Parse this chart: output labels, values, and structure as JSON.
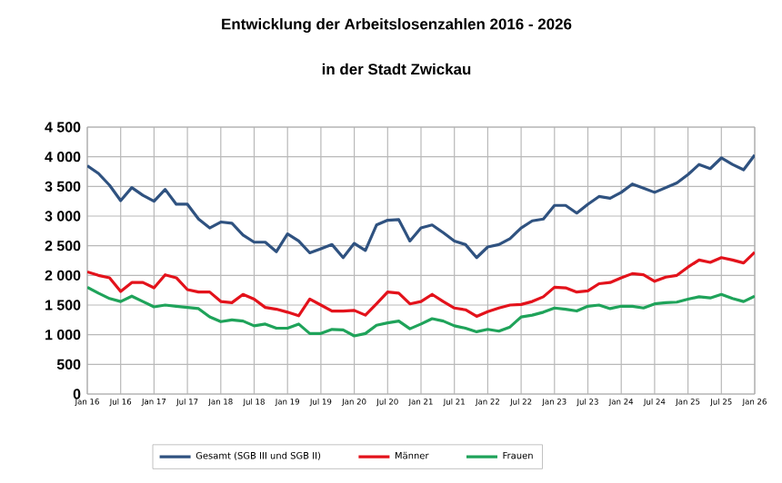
{
  "chart_data": {
    "type": "line",
    "title": "Entwicklung der Arbeitslosenzahlen 2016 - 2026",
    "subtitle": "in der Stadt Zwickau",
    "x": [
      "2016-01",
      "2016-03",
      "2016-05",
      "2016-07",
      "2016-09",
      "2016-11",
      "2017-01",
      "2017-03",
      "2017-05",
      "2017-07",
      "2017-09",
      "2017-11",
      "2018-01",
      "2018-03",
      "2018-05",
      "2018-07",
      "2018-09",
      "2018-11",
      "2019-01",
      "2019-03",
      "2019-05",
      "2019-07",
      "2019-09",
      "2019-11",
      "2020-01",
      "2020-03",
      "2020-05",
      "2020-07",
      "2020-09",
      "2020-11",
      "2021-01",
      "2021-03",
      "2021-05",
      "2021-07",
      "2021-09",
      "2021-11",
      "2022-01",
      "2022-03",
      "2022-05",
      "2022-07",
      "2022-09",
      "2022-11",
      "2023-01",
      "2023-03",
      "2023-05",
      "2023-07",
      "2023-09",
      "2023-11",
      "2024-01",
      "2024-03",
      "2024-05",
      "2024-07",
      "2024-09",
      "2024-11",
      "2025-01",
      "2025-03",
      "2025-05",
      "2025-07",
      "2025-09",
      "2025-11",
      "2026-01"
    ],
    "series": [
      {
        "name": "Gesamt (SGB III und SGB II)",
        "color": "#2f5280",
        "values": [
          3850,
          3720,
          3520,
          3260,
          3480,
          3350,
          3250,
          3450,
          3200,
          3200,
          2950,
          2800,
          2900,
          2880,
          2680,
          2560,
          2560,
          2400,
          2700,
          2580,
          2380,
          2450,
          2520,
          2300,
          2540,
          2420,
          2850,
          2930,
          2940,
          2580,
          2800,
          2850,
          2720,
          2580,
          2520,
          2300,
          2480,
          2520,
          2620,
          2800,
          2920,
          2950,
          3180,
          3180,
          3050,
          3200,
          3330,
          3300,
          3400,
          3540,
          3470,
          3400,
          3480,
          3560,
          3700,
          3870,
          3800,
          3980,
          3870,
          3780,
          4030
        ]
      },
      {
        "name": "Männer",
        "color": "#e3121b",
        "values": [
          2060,
          2000,
          1960,
          1730,
          1880,
          1880,
          1790,
          2010,
          1960,
          1760,
          1720,
          1720,
          1560,
          1540,
          1680,
          1600,
          1460,
          1430,
          1380,
          1320,
          1600,
          1500,
          1400,
          1400,
          1410,
          1330,
          1520,
          1720,
          1700,
          1520,
          1560,
          1680,
          1560,
          1450,
          1420,
          1310,
          1390,
          1450,
          1500,
          1510,
          1560,
          1640,
          1800,
          1790,
          1720,
          1740,
          1860,
          1880,
          1960,
          2030,
          2010,
          1900,
          1970,
          2000,
          2140,
          2260,
          2220,
          2300,
          2260,
          2210,
          2390
        ]
      },
      {
        "name": "Frauen",
        "color": "#1fa35a",
        "values": [
          1800,
          1700,
          1610,
          1560,
          1650,
          1560,
          1470,
          1500,
          1480,
          1460,
          1440,
          1300,
          1220,
          1250,
          1230,
          1150,
          1180,
          1110,
          1110,
          1180,
          1020,
          1020,
          1090,
          1080,
          980,
          1020,
          1160,
          1200,
          1230,
          1100,
          1180,
          1270,
          1230,
          1150,
          1110,
          1050,
          1090,
          1060,
          1130,
          1300,
          1330,
          1380,
          1450,
          1430,
          1400,
          1480,
          1500,
          1440,
          1480,
          1480,
          1450,
          1520,
          1540,
          1550,
          1600,
          1640,
          1620,
          1680,
          1610,
          1560,
          1650
        ]
      }
    ],
    "xlim": [
      "2016-01",
      "2026-01"
    ],
    "xticks": [
      {
        "value": "2016-01",
        "label": "Jan 16"
      },
      {
        "value": "2016-07",
        "label": "Jul 16"
      },
      {
        "value": "2017-01",
        "label": "Jan 17"
      },
      {
        "value": "2017-07",
        "label": "Jul 17"
      },
      {
        "value": "2018-01",
        "label": "Jan 18"
      },
      {
        "value": "2018-07",
        "label": "Jul 18"
      },
      {
        "value": "2019-01",
        "label": "Jan 19"
      },
      {
        "value": "2019-07",
        "label": "Jul 19"
      },
      {
        "value": "2020-01",
        "label": "Jan 20"
      },
      {
        "value": "2020-07",
        "label": "Jul 20"
      },
      {
        "value": "2021-01",
        "label": "Jan 21"
      },
      {
        "value": "2021-07",
        "label": "Jul 21"
      },
      {
        "value": "2022-01",
        "label": "Jan 22"
      },
      {
        "value": "2022-07",
        "label": "Jul 22"
      },
      {
        "value": "2023-01",
        "label": "Jan 23"
      },
      {
        "value": "2023-07",
        "label": "Jul 23"
      },
      {
        "value": "2024-01",
        "label": "Jan 24"
      },
      {
        "value": "2024-07",
        "label": "Jul 24"
      },
      {
        "value": "2025-01",
        "label": "Jan 25"
      },
      {
        "value": "2025-07",
        "label": "Jul 25"
      },
      {
        "value": "2026-01",
        "label": "Jan 26"
      }
    ],
    "ylim": [
      0,
      4500
    ],
    "yticks": [
      0,
      500,
      {
        "value": 1000,
        "label": "1 000"
      },
      {
        "value": 1500,
        "label": "1 500"
      },
      {
        "value": 2000,
        "label": "2 000"
      },
      {
        "value": 2500,
        "label": "2 500"
      },
      {
        "value": 3000,
        "label": "3 000"
      },
      {
        "value": 3500,
        "label": "3 500"
      },
      {
        "value": 4000,
        "label": "4 000"
      },
      {
        "value": 4500,
        "label": "4 500"
      }
    ],
    "grid": true,
    "legend": "bottom",
    "marker": "none",
    "line_style": "solid"
  }
}
